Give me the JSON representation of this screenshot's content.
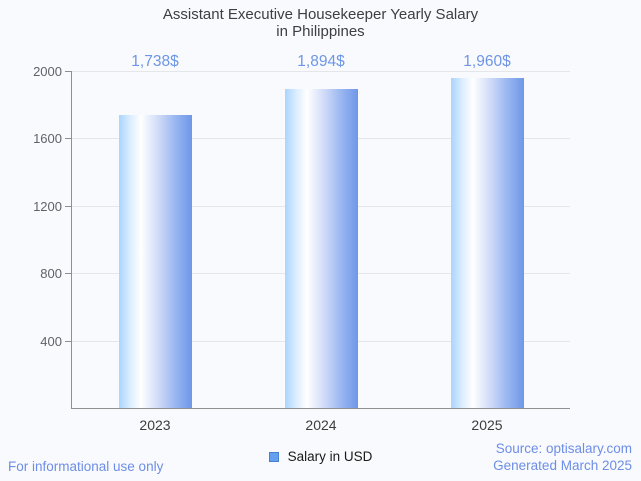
{
  "page": {
    "background": "#f9fafd"
  },
  "title": {
    "line1": "Assistant Executive Housekeeper Yearly Salary",
    "line2": "in Philippines",
    "color": "#3c4043"
  },
  "chart_data": {
    "type": "bar",
    "title": "Assistant Executive Housekeeper Yearly Salary in Philippines",
    "categories": [
      "2023",
      "2024",
      "2025"
    ],
    "values": [
      1738,
      1894,
      1960
    ],
    "value_labels": [
      "1,738$",
      "1,894$",
      "1,960$"
    ],
    "series": [
      {
        "name": "Salary in USD",
        "values": [
          1738,
          1894,
          1960
        ]
      }
    ],
    "xlabel": "",
    "ylabel": "",
    "ylim": [
      0,
      2000
    ],
    "yticks": [
      400,
      800,
      1200,
      1600,
      2000
    ],
    "grid": true,
    "legend_position": "bottom",
    "colors": {
      "bar_gradient_css": "linear-gradient(90deg, #a9d5ff 0%, #ddeeff 16%, #ffffff 30%, #cdd9f7 55%, #93b2f0 80%, #6f97e8 100%)",
      "value_label": "#6d96e6",
      "axis_line": "#8f8f8f",
      "gridline": "#e4e6ea",
      "y_tick_label": "#5f6368",
      "x_tick_label": "#3d3d3d"
    }
  },
  "legend": {
    "label": "Salary in USD",
    "swatch_fill": "#64a0f0",
    "swatch_border": "#4a7fd0"
  },
  "footer": {
    "left_note": "For informational use only",
    "source": "Source: optisalary.com",
    "generated": "Generated March 2025",
    "text_color": "#6d8ee6"
  }
}
